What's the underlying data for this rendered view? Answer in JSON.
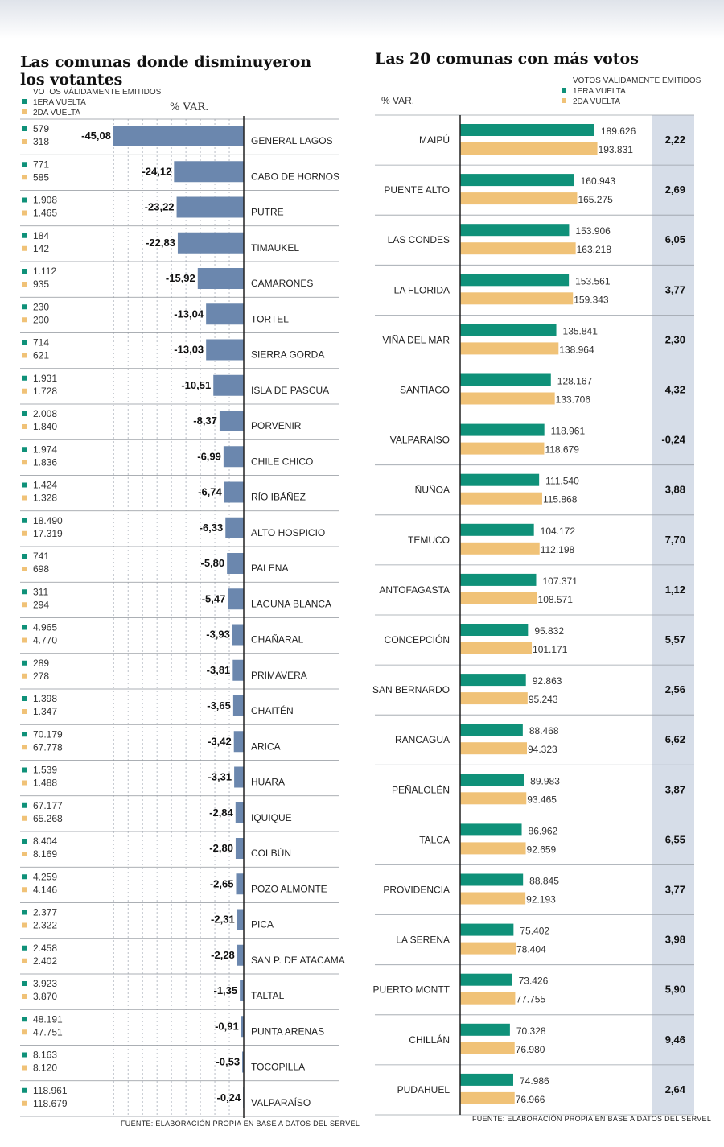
{
  "legend": {
    "header": "VOTOS VÁLIDAMENTE EMITIDOS",
    "first_round": "1ERA VUELTA",
    "second_round": "2DA VUELTA",
    "var_label": "% VAR."
  },
  "colors": {
    "first_round": "#0f9179",
    "second_round": "#f0c277",
    "decline_bar": "#6b87ae",
    "var_column_bg": "#d6dde8"
  },
  "left": {
    "title_line1": "Las comunas donde disminuyeron",
    "title_line2": "los votantes",
    "source": "FUENTE: ELABORACIÓN PROPIA EN BASE A DATOS DEL SERVEL"
  },
  "right": {
    "title": "Las 20 comunas con más votos",
    "source": "FUENTE: ELABORACIÓN PROPIA EN BASE A DATOS DEL SERVEL"
  },
  "chart_data": [
    {
      "type": "bar",
      "title": "Las comunas donde disminuyeron los votantes",
      "xlabel": "% VAR.",
      "xlim": [
        -50,
        0
      ],
      "categories": [
        "GENERAL LAGOS",
        "CABO DE HORNOS",
        "PUTRE",
        "TIMAUKEL",
        "CAMARONES",
        "TORTEL",
        "SIERRA GORDA",
        "ISLA DE PASCUA",
        "PORVENIR",
        "CHILE CHICO",
        "RÍO IBÁÑEZ",
        "ALTO HOSPICIO",
        "PALENA",
        "LAGUNA BLANCA",
        "CHAÑARAL",
        "PRIMAVERA",
        "CHAITÉN",
        "ARICA",
        "HUARA",
        "IQUIQUE",
        "COLBÚN",
        "POZO ALMONTE",
        "PICA",
        "SAN P. DE ATACAMA",
        "TALTAL",
        "PUNTA ARENAS",
        "TOCOPILLA",
        "VALPARAÍSO"
      ],
      "var_labels": [
        "-45,08",
        "-24,12",
        "-23,22",
        "-22,83",
        "-15,92",
        "-13,04",
        "-13,03",
        "-10,51",
        "-8,37",
        "-6,99",
        "-6,74",
        "-6,33",
        "-5,80",
        "-5,47",
        "-3,93",
        "-3,81",
        "-3,65",
        "-3,42",
        "-3,31",
        "-2,84",
        "-2,80",
        "-2,65",
        "-2,31",
        "-2,28",
        "-1,35",
        "-0,91",
        "-0,53",
        "-0,24"
      ],
      "values": [
        -45.08,
        -24.12,
        -23.22,
        -22.83,
        -15.92,
        -13.04,
        -13.03,
        -10.51,
        -8.37,
        -6.99,
        -6.74,
        -6.33,
        -5.8,
        -5.47,
        -3.93,
        -3.81,
        -3.65,
        -3.42,
        -3.31,
        -2.84,
        -2.8,
        -2.65,
        -2.31,
        -2.28,
        -1.35,
        -0.91,
        -0.53,
        -0.24
      ],
      "first_round_labels": [
        "579",
        "771",
        "1.908",
        "184",
        "1.112",
        "230",
        "714",
        "1.931",
        "2.008",
        "1.974",
        "1.424",
        "18.490",
        "741",
        "311",
        "4.965",
        "289",
        "1.398",
        "70.179",
        "1.539",
        "67.177",
        "8.404",
        "4.259",
        "2.377",
        "2.458",
        "3.923",
        "48.191",
        "8.163",
        "118.961"
      ],
      "second_round_labels": [
        "318",
        "585",
        "1.465",
        "142",
        "935",
        "200",
        "621",
        "1.728",
        "1.840",
        "1.836",
        "1.328",
        "17.319",
        "698",
        "294",
        "4.770",
        "278",
        "1.347",
        "67.778",
        "1.488",
        "65.268",
        "8.169",
        "4.146",
        "2.322",
        "2.402",
        "3.870",
        "47.751",
        "8.120",
        "118.679"
      ]
    },
    {
      "type": "bar",
      "title": "Las 20 comunas con más votos",
      "xlim": [
        0,
        200000
      ],
      "categories": [
        "MAIPÚ",
        "PUENTE ALTO",
        "LAS CONDES",
        "LA FLORIDA",
        "VIÑA DEL MAR",
        "SANTIAGO",
        "VALPARAÍSO",
        "ÑUÑOA",
        "TEMUCO",
        "ANTOFAGASTA",
        "CONCEPCIÓN",
        "SAN BERNARDO",
        "RANCAGUA",
        "PEÑALOLÉN",
        "TALCA",
        "PROVIDENCIA",
        "LA SERENA",
        "PUERTO MONTT",
        "CHILLÁN",
        "PUDAHUEL"
      ],
      "series": [
        {
          "name": "1ERA VUELTA",
          "values": [
            189626,
            160943,
            153906,
            153561,
            135841,
            128167,
            118961,
            111540,
            104172,
            107371,
            95832,
            92863,
            88468,
            89983,
            86962,
            88845,
            75402,
            73426,
            70328,
            74986
          ],
          "labels": [
            "189.626",
            "160.943",
            "153.906",
            "153.561",
            "135.841",
            "128.167",
            "118.961",
            "111.540",
            "104.172",
            "107.371",
            "95.832",
            "92.863",
            "88.468",
            "89.983",
            "86.962",
            "88.845",
            "75.402",
            "73.426",
            "70.328",
            "74.986"
          ]
        },
        {
          "name": "2DA VUELTA",
          "values": [
            193831,
            165275,
            163218,
            159343,
            138964,
            133706,
            118679,
            115868,
            112198,
            108571,
            101171,
            95243,
            94323,
            93465,
            92659,
            92193,
            78404,
            77755,
            76980,
            76966
          ],
          "labels": [
            "193.831",
            "165.275",
            "163.218",
            "159.343",
            "138.964",
            "133.706",
            "118.679",
            "115.868",
            "112.198",
            "108.571",
            "101.171",
            "95.243",
            "94.323",
            "93.465",
            "92.659",
            "92.193",
            "78.404",
            "77.755",
            "76.980",
            "76.966"
          ]
        }
      ],
      "var_values": [
        2.22,
        2.69,
        6.05,
        3.77,
        2.3,
        4.32,
        -0.24,
        3.88,
        7.7,
        1.12,
        5.57,
        2.56,
        6.62,
        3.87,
        6.55,
        3.77,
        3.98,
        5.9,
        9.46,
        2.64
      ],
      "var_labels": [
        "2,22",
        "2,69",
        "6,05",
        "3,77",
        "2,30",
        "4,32",
        "-0,24",
        "3,88",
        "7,70",
        "1,12",
        "5,57",
        "2,56",
        "6,62",
        "3,87",
        "6,55",
        "3,77",
        "3,98",
        "5,90",
        "9,46",
        "2,64"
      ]
    }
  ]
}
